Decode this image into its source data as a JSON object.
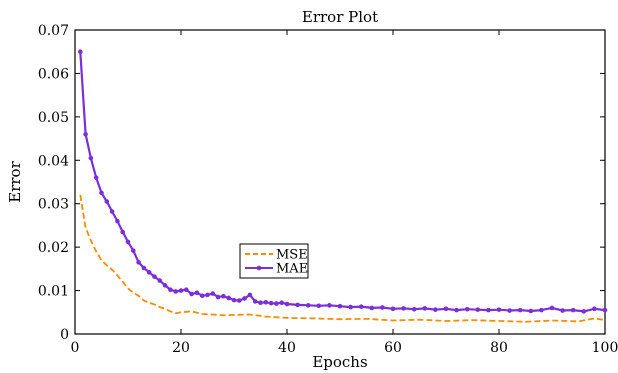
{
  "chart_data": {
    "type": "line",
    "title": "Error Plot",
    "xlabel": "Epochs",
    "ylabel": "Error",
    "xlim": [
      0,
      100
    ],
    "ylim": [
      0,
      0.07
    ],
    "xticks": [
      0,
      20,
      40,
      60,
      80,
      100
    ],
    "yticks": [
      0,
      0.01,
      0.02,
      0.03,
      0.04,
      0.05,
      0.06,
      0.07
    ],
    "xtick_labels": [
      "0",
      "20",
      "40",
      "60",
      "80",
      "100"
    ],
    "ytick_labels": [
      "0",
      "0.01",
      "0.02",
      "0.03",
      "0.04",
      "0.05",
      "0.06",
      "0.07"
    ],
    "grid": false,
    "legend_position": "center",
    "series": [
      {
        "name": "MSE",
        "color": "#ff8c00",
        "style": "dashed",
        "x": [
          1,
          2,
          3,
          4,
          5,
          6,
          7,
          8,
          9,
          10,
          11,
          12,
          13,
          14,
          15,
          16,
          17,
          18,
          19,
          20,
          22,
          24,
          26,
          28,
          30,
          33,
          36,
          40,
          45,
          50,
          55,
          60,
          65,
          70,
          75,
          80,
          85,
          90,
          95,
          98,
          100
        ],
        "values": [
          0.032,
          0.0245,
          0.0215,
          0.019,
          0.017,
          0.0158,
          0.0148,
          0.0135,
          0.012,
          0.0105,
          0.0095,
          0.0088,
          0.0077,
          0.0072,
          0.0068,
          0.0062,
          0.0058,
          0.0052,
          0.0048,
          0.005,
          0.0052,
          0.0046,
          0.0045,
          0.0043,
          0.0044,
          0.0045,
          0.004,
          0.0037,
          0.0036,
          0.0034,
          0.0035,
          0.0031,
          0.0033,
          0.003,
          0.0032,
          0.003,
          0.0028,
          0.0031,
          0.0029,
          0.0036,
          0.0032
        ]
      },
      {
        "name": "MAE",
        "color": "#7b2fd6",
        "style": "solid",
        "x": [
          1,
          2,
          3,
          4,
          5,
          6,
          7,
          8,
          9,
          10,
          11,
          12,
          13,
          14,
          15,
          16,
          17,
          18,
          19,
          20,
          21,
          22,
          23,
          24,
          25,
          26,
          27,
          28,
          29,
          30,
          31,
          32,
          33,
          34,
          35,
          36,
          37,
          38,
          39,
          40,
          42,
          44,
          46,
          48,
          50,
          52,
          54,
          56,
          58,
          60,
          62,
          64,
          66,
          68,
          70,
          72,
          74,
          76,
          78,
          80,
          82,
          84,
          86,
          88,
          90,
          92,
          94,
          96,
          98,
          100
        ],
        "values": [
          0.065,
          0.046,
          0.0405,
          0.036,
          0.0325,
          0.0305,
          0.0282,
          0.026,
          0.0235,
          0.0212,
          0.0192,
          0.0165,
          0.0152,
          0.0142,
          0.0132,
          0.0123,
          0.0112,
          0.0102,
          0.0098,
          0.01,
          0.0102,
          0.0092,
          0.0095,
          0.0088,
          0.009,
          0.0093,
          0.0085,
          0.0087,
          0.0083,
          0.0078,
          0.0077,
          0.0082,
          0.009,
          0.0075,
          0.0072,
          0.0073,
          0.0071,
          0.007,
          0.0072,
          0.0069,
          0.0067,
          0.0066,
          0.0065,
          0.0066,
          0.0064,
          0.0062,
          0.0063,
          0.006,
          0.0061,
          0.0058,
          0.0059,
          0.0057,
          0.0059,
          0.0056,
          0.0058,
          0.0055,
          0.0057,
          0.0056,
          0.0055,
          0.0056,
          0.0054,
          0.0055,
          0.0053,
          0.0055,
          0.006,
          0.0054,
          0.0055,
          0.0052,
          0.0058,
          0.0055
        ]
      }
    ]
  }
}
